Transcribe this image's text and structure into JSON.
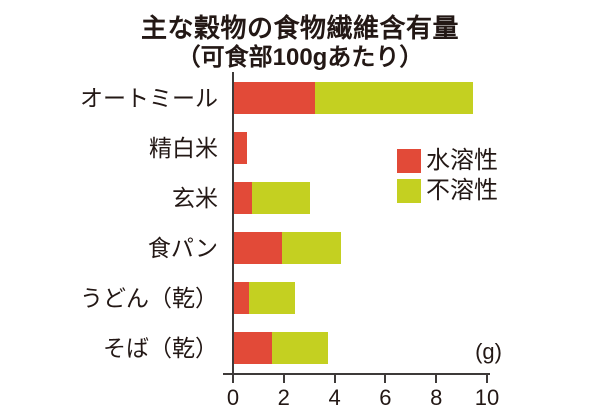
{
  "title": "主な穀物の食物繊維含有量",
  "subtitle": "（可食部100gあたり）",
  "unit_label": "(g)",
  "colors": {
    "soluble": "#e24a38",
    "insoluble": "#c4d021",
    "text": "#231815",
    "axis": "#3e3a39"
  },
  "legend": {
    "items": [
      {
        "label": "水溶性",
        "color": "#e24a38"
      },
      {
        "label": "不溶性",
        "color": "#c4d021"
      }
    ]
  },
  "chart_data": {
    "type": "bar",
    "orientation": "horizontal",
    "stacked": true,
    "title": "主な穀物の食物繊維含有量",
    "subtitle": "（可食部100gあたり）",
    "xlabel": "(g)",
    "categories": [
      "オートミール",
      "精白米",
      "玄米",
      "食パン",
      "うどん（乾）",
      "そば（乾）"
    ],
    "series": [
      {
        "name": "水溶性",
        "color": "#e24a38",
        "values": [
          3.2,
          0.5,
          0.7,
          1.9,
          0.6,
          1.5
        ]
      },
      {
        "name": "不溶性",
        "color": "#c4d021",
        "values": [
          6.2,
          0,
          2.3,
          2.3,
          1.8,
          2.2
        ]
      }
    ],
    "totals": [
      9.4,
      0.5,
      3.0,
      4.2,
      2.4,
      3.7
    ],
    "xlim": [
      0,
      10
    ],
    "xticks": [
      0,
      2,
      4,
      6,
      8,
      10
    ],
    "grid": false,
    "legend_position": "middle-right"
  }
}
